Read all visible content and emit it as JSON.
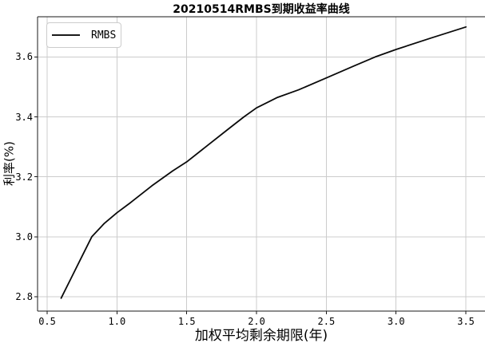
{
  "colors": {
    "background": "#ffffff",
    "grid": "#cccccc",
    "spine": "#1a1a1a",
    "curve": "#0a0a0a",
    "text": "#000000",
    "legend_border": "#cccccc"
  },
  "legend": {
    "items": [
      {
        "label": "RMBS",
        "color": "#1a1a1a"
      }
    ],
    "position": "upper left"
  },
  "chart_data": {
    "type": "line",
    "title": "20210514RMBS到期收益率曲线",
    "xlabel": "加权平均剩余期限(年)",
    "ylabel": "利率(%)",
    "xlim": [
      0.431,
      3.637
    ],
    "ylim": [
      2.752,
      3.734
    ],
    "xticks": [
      0.5,
      1.0,
      1.5,
      2.0,
      2.5,
      3.0,
      3.5
    ],
    "xtick_labels": [
      "0.5",
      "1.0",
      "1.5",
      "2.0",
      "2.5",
      "3.0",
      "3.5"
    ],
    "yticks": [
      2.8,
      3.0,
      3.2,
      3.4,
      3.6
    ],
    "ytick_labels": [
      "2.8",
      "3.0",
      "3.2",
      "3.4",
      "3.6"
    ],
    "grid": true,
    "legend_position": "upper left",
    "series": [
      {
        "name": "RMBS",
        "color": "#0a0a0a",
        "x": [
          0.6,
          0.67,
          0.75,
          0.82,
          0.91,
          1.0,
          1.1,
          1.25,
          1.4,
          1.5,
          1.65,
          1.8,
          1.91,
          2.0,
          2.15,
          2.3,
          2.5,
          2.7,
          2.85,
          3.0,
          3.25,
          3.5
        ],
        "y": [
          2.795,
          2.86,
          2.935,
          3.0,
          3.045,
          3.08,
          3.115,
          3.17,
          3.22,
          3.25,
          3.305,
          3.36,
          3.4,
          3.43,
          3.465,
          3.49,
          3.53,
          3.57,
          3.6,
          3.625,
          3.663,
          3.7
        ]
      }
    ]
  }
}
